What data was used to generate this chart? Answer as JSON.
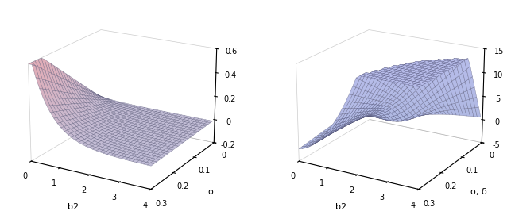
{
  "left": {
    "b2_range": [
      0.01,
      4.0
    ],
    "sigma_range": [
      0.0,
      0.3
    ],
    "zlim": [
      -0.2,
      0.6
    ],
    "zticks": [
      -0.2,
      0,
      0.2,
      0.4,
      0.6
    ],
    "xlabel": "b2",
    "ylabel": "σ",
    "color_low": [
      0.72,
      0.76,
      0.88
    ],
    "color_high": [
      0.88,
      0.68,
      0.72
    ]
  },
  "right": {
    "b2_range": [
      0.01,
      4.0
    ],
    "sigma_range": [
      0.0,
      0.3
    ],
    "zlim": [
      -5,
      15
    ],
    "zticks": [
      -5,
      0,
      5,
      10,
      15
    ],
    "xlabel": "b2",
    "ylabel": "σ, δ",
    "color_low": [
      0.68,
      0.72,
      0.88
    ],
    "color_high": [
      0.72,
      0.74,
      0.92
    ]
  },
  "fig_width": 6.43,
  "fig_height": 2.71,
  "dpi": 100,
  "background_color": "#ffffff",
  "surface_alpha": 1.0,
  "grid_linewidth": 0.35,
  "grid_color": "#44446688"
}
